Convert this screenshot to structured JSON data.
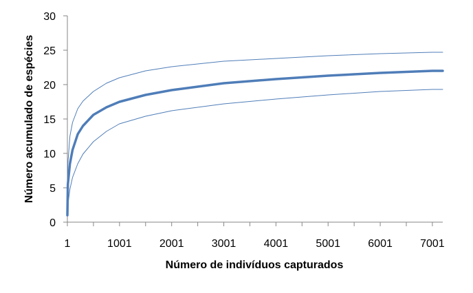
{
  "chart_data": {
    "type": "line",
    "title": "",
    "xlabel": "Número de indivíduos capturados",
    "ylabel": "Número acumulado de espécies",
    "xlim": [
      1,
      7200
    ],
    "ylim": [
      0,
      30
    ],
    "x_ticks": [
      1,
      1001,
      2001,
      3001,
      4001,
      5001,
      6001,
      7001
    ],
    "y_ticks": [
      0,
      5,
      10,
      15,
      20,
      25,
      30
    ],
    "grid": false,
    "legend": "none",
    "series": [
      {
        "role": "upper",
        "color": "#4f7db8",
        "x": [
          1,
          10,
          50,
          100,
          200,
          300,
          500,
          750,
          1001,
          1500,
          2001,
          3001,
          4001,
          5001,
          6001,
          7001,
          7200
        ],
        "values": [
          1,
          8.5,
          12.5,
          14.5,
          16.5,
          17.6,
          19.0,
          20.2,
          21.0,
          22.0,
          22.6,
          23.4,
          23.8,
          24.2,
          24.5,
          24.7,
          24.7
        ]
      },
      {
        "role": "estimate",
        "color": "#4f7db8",
        "x": [
          1,
          10,
          50,
          100,
          200,
          300,
          500,
          750,
          1001,
          1500,
          2001,
          3001,
          4001,
          5001,
          6001,
          7001,
          7200
        ],
        "values": [
          1,
          5.5,
          8.5,
          10.5,
          12.8,
          14.0,
          15.6,
          16.7,
          17.5,
          18.5,
          19.2,
          20.2,
          20.8,
          21.3,
          21.7,
          22.0,
          22.0
        ]
      },
      {
        "role": "lower",
        "color": "#4f7db8",
        "x": [
          1,
          10,
          50,
          100,
          200,
          300,
          500,
          750,
          1001,
          1500,
          2001,
          3001,
          4001,
          5001,
          6001,
          7001,
          7200
        ],
        "values": [
          1,
          2.5,
          4.8,
          6.5,
          8.5,
          9.9,
          11.7,
          13.2,
          14.3,
          15.4,
          16.2,
          17.2,
          17.9,
          18.5,
          19.0,
          19.3,
          19.3
        ]
      }
    ]
  }
}
